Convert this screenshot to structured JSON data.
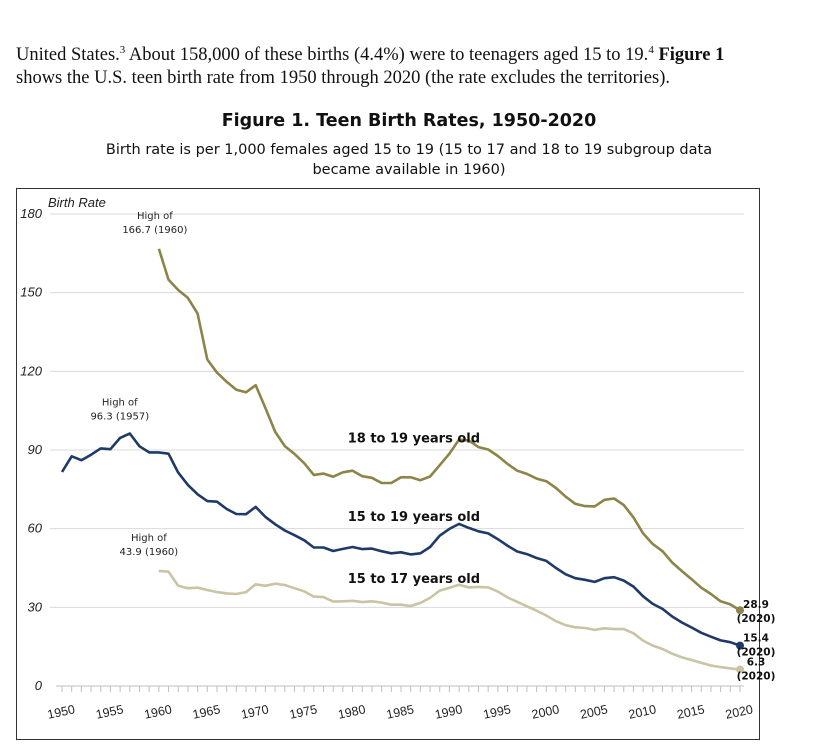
{
  "text": {
    "intro_part1": "United States.",
    "intro_sup1": "3",
    "intro_part2": " About 158,000 of these births (4.4%) were to teenagers aged 15 to 19.",
    "intro_sup2": "4",
    "intro_bold": "Figure 1",
    "intro_line2": "shows the U.S. teen birth rate from 1950 through 2020 (the rate excludes the territories)."
  },
  "chart_data": {
    "type": "line",
    "title": "Figure 1. Teen Birth Rates, 1950-2020",
    "subtitle_line1": "Birth rate is per 1,000 females aged 15 to 19 (15 to 17 and 18 to 19 subgroup data",
    "subtitle_line2": "became available in 1960)",
    "ylabel": "Birth Rate",
    "xlabel": "",
    "ylim": [
      0,
      180
    ],
    "xlim": [
      1950,
      2020
    ],
    "yticks": [
      "0",
      "30",
      "60",
      "90",
      "120",
      "150",
      "180"
    ],
    "xticks": [
      "1950",
      "1955",
      "1960",
      "1965",
      "1970",
      "1975",
      "1980",
      "1985",
      "1990",
      "1995",
      "2000",
      "2005",
      "2010",
      "2015",
      "2020"
    ],
    "grid": true,
    "series": [
      {
        "name": "18 to 19 years old",
        "color": "#8c8448",
        "x": [
          1960,
          1961,
          1962,
          1963,
          1964,
          1965,
          1966,
          1967,
          1968,
          1969,
          1970,
          1971,
          1972,
          1973,
          1974,
          1975,
          1976,
          1977,
          1978,
          1979,
          1980,
          1981,
          1982,
          1983,
          1984,
          1985,
          1986,
          1987,
          1988,
          1989,
          1990,
          1991,
          1992,
          1993,
          1994,
          1995,
          1996,
          1997,
          1998,
          1999,
          2000,
          2001,
          2002,
          2003,
          2004,
          2005,
          2006,
          2007,
          2008,
          2009,
          2010,
          2011,
          2012,
          2013,
          2014,
          2015,
          2016,
          2017,
          2018,
          2019,
          2020
        ],
        "values": [
          166.7,
          155.0,
          151.0,
          148.0,
          142.0,
          124.5,
          119.5,
          116.0,
          113.0,
          112.0,
          114.7,
          106.0,
          97.0,
          91.5,
          88.5,
          85.0,
          80.5,
          81.0,
          79.8,
          81.5,
          82.1,
          80.0,
          79.4,
          77.4,
          77.4,
          79.6,
          79.6,
          78.5,
          79.9,
          84.2,
          88.6,
          94.0,
          93.6,
          91.1,
          90.2,
          87.7,
          84.7,
          82.1,
          80.9,
          79.1,
          78.1,
          75.5,
          72.2,
          69.5,
          68.6,
          68.5,
          71.0,
          71.5,
          69.0,
          64.3,
          58.2,
          54.1,
          51.4,
          47.1,
          43.8,
          40.7,
          37.5,
          35.1,
          32.3,
          31.1,
          28.9
        ]
      },
      {
        "name": "15 to 19 years old",
        "color": "#1f3a68",
        "x": [
          1950,
          1951,
          1952,
          1953,
          1954,
          1955,
          1956,
          1957,
          1958,
          1959,
          1960,
          1961,
          1962,
          1963,
          1964,
          1965,
          1966,
          1967,
          1968,
          1969,
          1970,
          1971,
          1972,
          1973,
          1974,
          1975,
          1976,
          1977,
          1978,
          1979,
          1980,
          1981,
          1982,
          1983,
          1984,
          1985,
          1986,
          1987,
          1988,
          1989,
          1990,
          1991,
          1992,
          1993,
          1994,
          1995,
          1996,
          1997,
          1998,
          1999,
          2000,
          2001,
          2002,
          2003,
          2004,
          2005,
          2006,
          2007,
          2008,
          2009,
          2010,
          2011,
          2012,
          2013,
          2014,
          2015,
          2016,
          2017,
          2018,
          2019,
          2020
        ],
        "values": [
          81.6,
          87.6,
          86.1,
          88.2,
          90.6,
          90.3,
          94.6,
          96.3,
          91.4,
          89.1,
          89.1,
          88.6,
          81.4,
          76.7,
          73.1,
          70.5,
          70.3,
          67.5,
          65.6,
          65.5,
          68.3,
          64.5,
          61.7,
          59.3,
          57.5,
          55.6,
          52.8,
          52.8,
          51.5,
          52.3,
          53.0,
          52.2,
          52.4,
          51.4,
          50.6,
          51.0,
          50.2,
          50.6,
          53.0,
          57.3,
          59.9,
          61.8,
          60.3,
          59.0,
          58.2,
          56.0,
          53.5,
          51.3,
          50.3,
          48.8,
          47.7,
          45.0,
          42.6,
          41.1,
          40.5,
          39.7,
          41.1,
          41.5,
          40.2,
          37.9,
          34.2,
          31.3,
          29.4,
          26.5,
          24.2,
          22.3,
          20.3,
          18.8,
          17.4,
          16.7,
          15.4
        ]
      },
      {
        "name": "15 to 17 years old",
        "color": "#c8c4a4",
        "x": [
          1960,
          1961,
          1962,
          1963,
          1964,
          1965,
          1966,
          1967,
          1968,
          1969,
          1970,
          1971,
          1972,
          1973,
          1974,
          1975,
          1976,
          1977,
          1978,
          1979,
          1980,
          1981,
          1982,
          1983,
          1984,
          1985,
          1986,
          1987,
          1988,
          1989,
          1990,
          1991,
          1992,
          1993,
          1994,
          1995,
          1996,
          1997,
          1998,
          1999,
          2000,
          2001,
          2002,
          2003,
          2004,
          2005,
          2006,
          2007,
          2008,
          2009,
          2010,
          2011,
          2012,
          2013,
          2014,
          2015,
          2016,
          2017,
          2018,
          2019,
          2020
        ],
        "values": [
          43.9,
          43.6,
          38.2,
          37.3,
          37.5,
          36.6,
          35.8,
          35.3,
          35.1,
          35.8,
          38.8,
          38.2,
          39.0,
          38.5,
          37.3,
          36.1,
          34.1,
          33.9,
          32.2,
          32.3,
          32.5,
          32.0,
          32.3,
          31.8,
          31.0,
          31.0,
          30.5,
          31.7,
          33.6,
          36.4,
          37.5,
          38.6,
          37.6,
          37.8,
          37.6,
          36.0,
          33.8,
          32.1,
          30.4,
          28.7,
          26.9,
          24.7,
          23.2,
          22.4,
          22.1,
          21.4,
          22.0,
          21.7,
          21.7,
          20.1,
          17.3,
          15.4,
          14.1,
          12.3,
          10.9,
          9.9,
          8.8,
          7.8,
          7.2,
          6.7,
          6.3
        ]
      }
    ],
    "annotations": [
      {
        "series": "18 to 19 years old",
        "x": 1960,
        "y": 166.7,
        "lines": [
          "High of",
          "166.7 (1960)"
        ]
      },
      {
        "series": "15 to 19 years old",
        "x": 1957,
        "y": 96.3,
        "lines": [
          "High of",
          "96.3 (1957)"
        ]
      },
      {
        "series": "15 to 17 years old",
        "x": 1960,
        "y": 43.9,
        "lines": [
          "High of",
          "43.9 (1960)"
        ]
      }
    ],
    "end_labels": [
      {
        "series": "18 to 19 years old",
        "value": "28.9",
        "year": "(2020)"
      },
      {
        "series": "15 to 19 years old",
        "value": "15.4",
        "year": "(2020)"
      },
      {
        "series": "15 to 17 years old",
        "value": "6.3",
        "year": "(2020)"
      }
    ]
  }
}
